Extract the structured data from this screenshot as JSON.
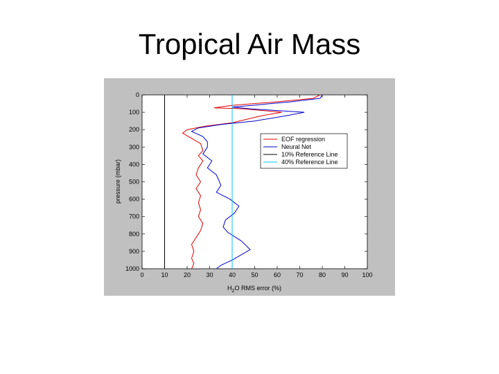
{
  "slide": {
    "title": "Tropical Air Mass"
  },
  "colors": {
    "figure_bg": "#c0c0c0",
    "axes_bg": "#ffffff",
    "series_red": "#e00000",
    "series_blue": "#0000cc",
    "ref10": "#000000",
    "ref40": "#00c0ff"
  },
  "chart_data": {
    "type": "line",
    "xlabel": "H2O RMS error (%)",
    "xlabel_main": "H",
    "xlabel_sub": "2",
    "xlabel_rest": "O RMS error (%)",
    "ylabel": "pressure (mbar)",
    "xlim": [
      0,
      100
    ],
    "ylim": [
      1000,
      0
    ],
    "y_reversed": true,
    "xticks": [
      0,
      10,
      20,
      30,
      40,
      50,
      60,
      70,
      80,
      90,
      100
    ],
    "yticks": [
      0,
      100,
      200,
      300,
      400,
      500,
      600,
      700,
      800,
      900,
      1000
    ],
    "grid": false,
    "legend_position": "upper-right",
    "series": [
      {
        "name": "EOF regression",
        "color": "#e00000",
        "points": [
          [
            79,
            0
          ],
          [
            76,
            20
          ],
          [
            60,
            40
          ],
          [
            40,
            60
          ],
          [
            32,
            75
          ],
          [
            45,
            80
          ],
          [
            62,
            100
          ],
          [
            53,
            120
          ],
          [
            40,
            160
          ],
          [
            28,
            180
          ],
          [
            20,
            200
          ],
          [
            18,
            220
          ],
          [
            22,
            250
          ],
          [
            26,
            280
          ],
          [
            27,
            320
          ],
          [
            25,
            350
          ],
          [
            27,
            380
          ],
          [
            25,
            420
          ],
          [
            24,
            460
          ],
          [
            26,
            500
          ],
          [
            24,
            540
          ],
          [
            26,
            580
          ],
          [
            25,
            620
          ],
          [
            26,
            660
          ],
          [
            25,
            700
          ],
          [
            27,
            740
          ],
          [
            26,
            780
          ],
          [
            24,
            820
          ],
          [
            22,
            860
          ],
          [
            23,
            900
          ],
          [
            22,
            940
          ],
          [
            23,
            970
          ],
          [
            22,
            1000
          ]
        ]
      },
      {
        "name": "Neural Net",
        "color": "#0000cc",
        "points": [
          [
            80,
            0
          ],
          [
            79,
            20
          ],
          [
            66,
            40
          ],
          [
            49,
            60
          ],
          [
            40,
            70
          ],
          [
            48,
            80
          ],
          [
            72,
            100
          ],
          [
            64,
            120
          ],
          [
            50,
            150
          ],
          [
            35,
            170
          ],
          [
            25,
            190
          ],
          [
            22,
            210
          ],
          [
            27,
            240
          ],
          [
            29,
            270
          ],
          [
            29,
            300
          ],
          [
            27,
            340
          ],
          [
            31,
            380
          ],
          [
            29,
            420
          ],
          [
            33,
            460
          ],
          [
            35,
            520
          ],
          [
            33,
            560
          ],
          [
            39,
            600
          ],
          [
            43,
            640
          ],
          [
            41,
            680
          ],
          [
            37,
            720
          ],
          [
            36,
            760
          ],
          [
            38,
            790
          ],
          [
            44,
            840
          ],
          [
            48,
            890
          ],
          [
            44,
            920
          ],
          [
            40,
            950
          ],
          [
            35,
            980
          ],
          [
            33,
            1000
          ]
        ]
      },
      {
        "name": "10% Reference Line",
        "color": "#000000",
        "points": [
          [
            10,
            0
          ],
          [
            10,
            1000
          ]
        ]
      },
      {
        "name": "40% Reference Line",
        "color": "#00c0ff",
        "points": [
          [
            40,
            0
          ],
          [
            40,
            1000
          ]
        ]
      }
    ]
  }
}
